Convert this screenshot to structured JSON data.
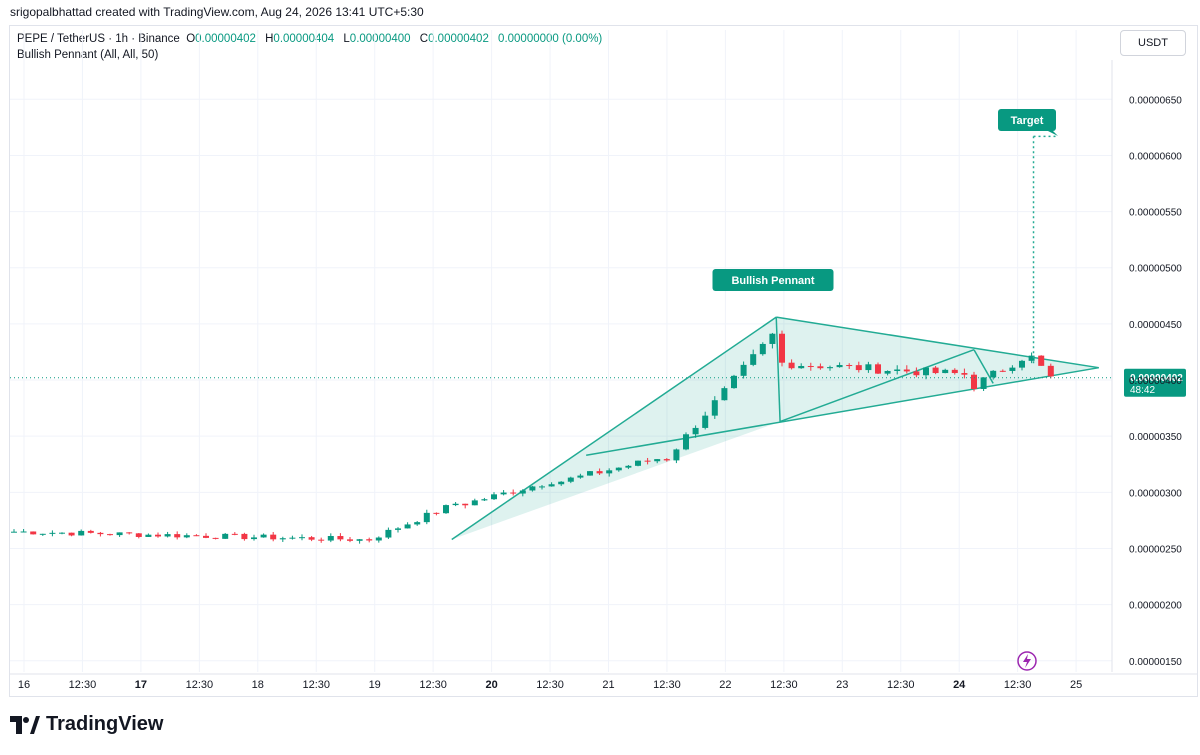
{
  "header": {
    "created_by": "srigopalbhattad created with TradingView.com, Aug 24, 2026 13:41 UTC+5:30",
    "symbol": "PEPE / TetherUS · 1h · Binance",
    "ohlc": {
      "o_label": "O",
      "o_value": "0.00000402",
      "h_label": "H",
      "h_value": "0.00000404",
      "l_label": "L",
      "l_value": "0.00000400",
      "c_label": "C",
      "c_value": "0.00000402",
      "change": "0.00000000 (0.00%)"
    },
    "indicator": "Bullish Pennant (All, All, 50)",
    "currency": "USDT"
  },
  "brand": {
    "logo_text": "TradingView"
  },
  "colors": {
    "up": "#089981",
    "down": "#f23645",
    "pattern": "#22ab94",
    "label_bg": "#089981"
  },
  "chart_data": {
    "type": "candlestick",
    "price_scale": {
      "ylim": [
        1.4e-06,
        6.85e-06
      ],
      "ticks": [
        "0.00000650",
        "0.00000600",
        "0.00000550",
        "0.00000500",
        "0.00000450",
        "0.00000400",
        "0.00000350",
        "0.00000300",
        "0.00000250",
        "0.00000200",
        "0.00000150"
      ]
    },
    "time_axis": {
      "labels": [
        "16",
        "12:30",
        "17",
        "12:30",
        "18",
        "12:30",
        "19",
        "12:30",
        "20",
        "12:30",
        "21",
        "12:30",
        "22",
        "12:30",
        "23",
        "12:30",
        "24",
        "12:30",
        "25"
      ],
      "bold": [
        "17",
        "20",
        "24"
      ]
    },
    "last_price": {
      "value": "0.00000402",
      "countdown": "48:42"
    },
    "annotations": {
      "pattern_label": "Bullish Pennant",
      "target_label": "Target"
    },
    "series_segments": [
      {
        "from": 0,
        "to": 37,
        "start": 2.65e-06,
        "end": 2.58e-06
      },
      {
        "from": 37,
        "to": 47,
        "start": 2.58e-06,
        "end": 2.9e-06
      },
      {
        "from": 47,
        "to": 57,
        "start": 2.9e-06,
        "end": 3.1e-06
      },
      {
        "from": 57,
        "to": 68,
        "start": 3.1e-06,
        "end": 3.3e-06
      },
      {
        "from": 68,
        "to": 80,
        "start": 3.3e-06,
        "end": 4.4e-06
      },
      {
        "from": 80,
        "to": 100,
        "start": 4.15e-06,
        "end": 4.05e-06
      },
      {
        "from": 100,
        "to": 106,
        "start": 3.95e-06,
        "end": 4.2e-06
      },
      {
        "from": 106,
        "to": 109,
        "start": 4.2e-06,
        "end": 4.02e-06
      }
    ]
  }
}
